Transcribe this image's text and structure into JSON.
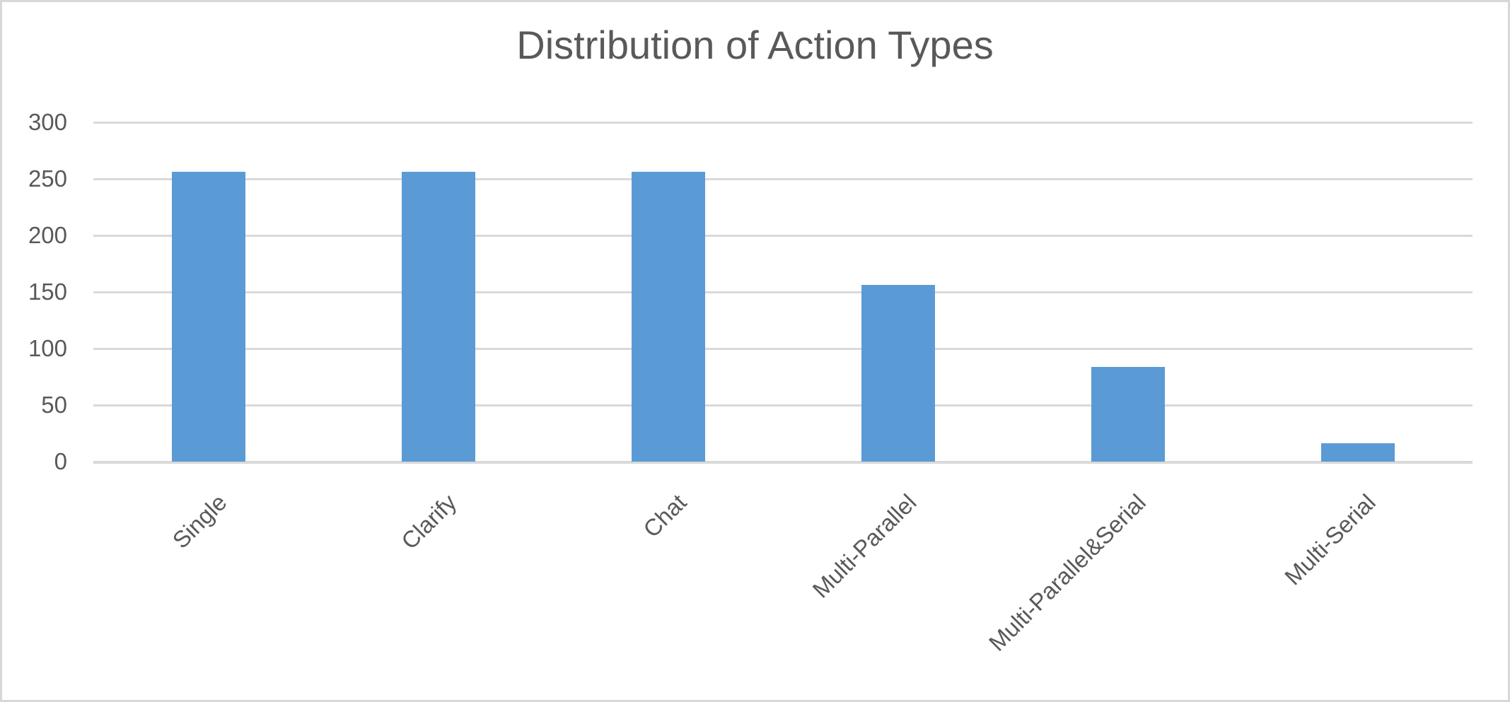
{
  "chart_data": {
    "type": "bar",
    "title": "Distribution of Action Types",
    "categories": [
      "Single",
      "Clarify",
      "Chat",
      "Multi-Parallel",
      "Multi-Parallel&Serial",
      "Multi-Serial"
    ],
    "values": [
      256,
      256,
      256,
      156,
      84,
      16
    ],
    "xlabel": "",
    "ylabel": "",
    "ylim": [
      0,
      300
    ],
    "yticks": [
      0,
      50,
      100,
      150,
      200,
      250,
      300
    ],
    "grid": true,
    "legend": false,
    "bar_color": "#5B9BD5",
    "text_color": "#595959",
    "gridline_color": "#D9D9D9",
    "frame_border_color": "#D8D8D8",
    "background_color": "#FFFFFF"
  }
}
